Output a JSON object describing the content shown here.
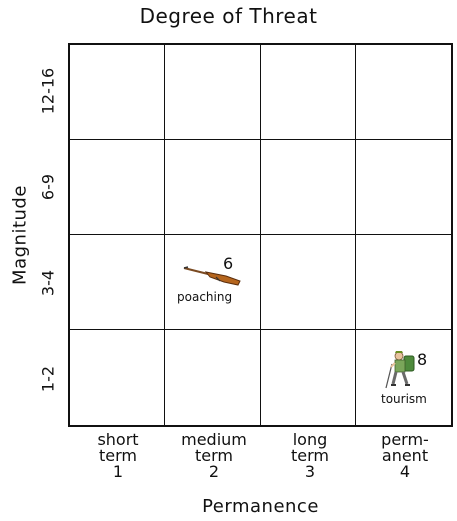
{
  "title": "Degree of Threat",
  "y_axis": {
    "label": "Magnitude",
    "rows": [
      "12-16",
      "6-9",
      "3-4",
      "1-2"
    ]
  },
  "x_axis": {
    "label": "Permanence",
    "columns": [
      {
        "line1": "short",
        "line2": "term",
        "value": "1"
      },
      {
        "line1": "medium",
        "line2": "term",
        "value": "2"
      },
      {
        "line1": "long",
        "line2": "term",
        "value": "3"
      },
      {
        "line1": "perm-",
        "line2": "anent",
        "value": "4"
      }
    ]
  },
  "threats": [
    {
      "name": "poaching",
      "score": "6",
      "icon": "rifle-icon",
      "permanence": "2",
      "magnitude": "3-4"
    },
    {
      "name": "tourism",
      "score": "8",
      "icon": "hiker-icon",
      "permanence": "4",
      "magnitude": "1-2"
    }
  ]
}
